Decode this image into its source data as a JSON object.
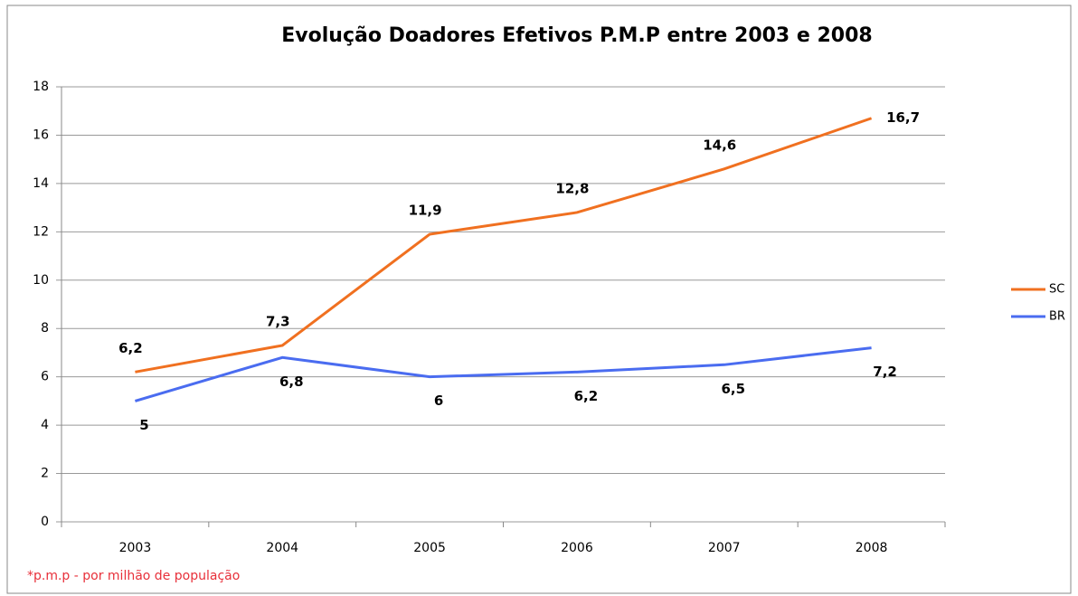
{
  "chart_data": {
    "type": "line",
    "title": "Evolução Doadores Efetivos P.M.P entre 2003 e 2008",
    "categories": [
      "2003",
      "2004",
      "2005",
      "2006",
      "2007",
      "2008"
    ],
    "series": [
      {
        "name": "SC",
        "color": "#f07020",
        "values": [
          6.2,
          7.3,
          11.9,
          12.8,
          14.6,
          16.7
        ],
        "value_labels": [
          "6,2",
          "7,3",
          "11,9",
          "12,8",
          "14,6",
          "16,7"
        ]
      },
      {
        "name": "BR",
        "color": "#4a6cf0",
        "values": [
          5,
          6.8,
          6,
          6.2,
          6.5,
          7.2
        ],
        "value_labels": [
          "5",
          "6,8",
          "6",
          "6,2",
          "6,5",
          "7,2"
        ]
      }
    ],
    "ylim": [
      0,
      18
    ],
    "yticks": [
      0,
      2,
      4,
      6,
      8,
      10,
      12,
      14,
      16,
      18
    ],
    "grid": true,
    "legend": "right",
    "footnote": "*p.m.p - por milhão de população"
  }
}
